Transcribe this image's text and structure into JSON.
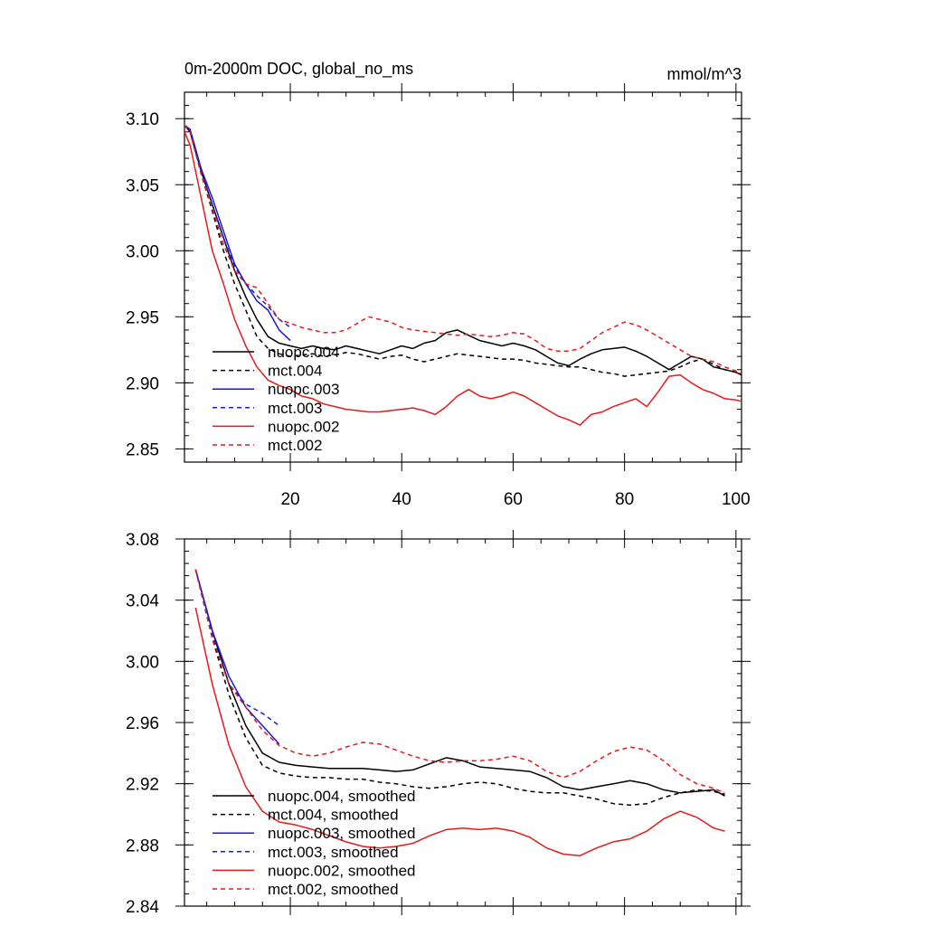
{
  "chart_data": [
    {
      "type": "line",
      "title": "0m-2000m DOC, global_no_ms",
      "units": "mmol/m^3",
      "xlim": [
        1,
        101
      ],
      "ylim": [
        2.84,
        3.12
      ],
      "xticks": [
        20,
        40,
        60,
        80,
        100
      ],
      "xtick_labels": [
        "20",
        "40",
        "60",
        "80",
        "100"
      ],
      "yticks": [
        2.85,
        2.9,
        2.95,
        3.0,
        3.05,
        3.1
      ],
      "ytick_labels": [
        "2.85",
        "2.90",
        "2.95",
        "3.00",
        "3.05",
        "3.10"
      ],
      "legend_position": "bottom-left",
      "series": [
        {
          "name": "nuopc.004",
          "color": "#000000",
          "dash": false,
          "x": [
            1,
            2,
            4,
            6,
            8,
            10,
            12,
            14,
            16,
            18,
            20,
            22,
            24,
            26,
            28,
            30,
            32,
            34,
            36,
            38,
            40,
            42,
            44,
            46,
            48,
            50,
            52,
            54,
            56,
            58,
            60,
            62,
            64,
            66,
            68,
            70,
            72,
            74,
            76,
            78,
            80,
            82,
            84,
            86,
            88,
            90,
            92,
            94,
            96,
            98,
            100,
            101
          ],
          "y": [
            3.095,
            3.09,
            3.06,
            3.035,
            3.01,
            2.985,
            2.965,
            2.948,
            2.935,
            2.93,
            2.928,
            2.926,
            2.928,
            2.926,
            2.925,
            2.928,
            2.926,
            2.924,
            2.922,
            2.925,
            2.928,
            2.926,
            2.93,
            2.932,
            2.938,
            2.94,
            2.936,
            2.932,
            2.93,
            2.928,
            2.93,
            2.928,
            2.925,
            2.92,
            2.915,
            2.913,
            2.918,
            2.922,
            2.925,
            2.926,
            2.927,
            2.924,
            2.92,
            2.915,
            2.91,
            2.915,
            2.92,
            2.918,
            2.912,
            2.91,
            2.908,
            2.906
          ]
        },
        {
          "name": "mct.004",
          "color": "#000000",
          "dash": true,
          "x": [
            1,
            2,
            4,
            6,
            8,
            10,
            12,
            14,
            16,
            18,
            20,
            22,
            24,
            26,
            28,
            30,
            32,
            34,
            36,
            38,
            40,
            42,
            44,
            46,
            48,
            50,
            52,
            54,
            56,
            58,
            60,
            62,
            64,
            66,
            68,
            70,
            72,
            74,
            76,
            78,
            80,
            82,
            84,
            86,
            88,
            90,
            92,
            94,
            96,
            98,
            100,
            101
          ],
          "y": [
            3.095,
            3.09,
            3.058,
            3.03,
            3.0,
            2.975,
            2.955,
            2.935,
            2.926,
            2.922,
            2.92,
            2.921,
            2.922,
            2.92,
            2.921,
            2.923,
            2.922,
            2.92,
            2.918,
            2.92,
            2.921,
            2.918,
            2.916,
            2.918,
            2.92,
            2.922,
            2.921,
            2.92,
            2.919,
            2.918,
            2.918,
            2.917,
            2.915,
            2.914,
            2.913,
            2.912,
            2.912,
            2.91,
            2.908,
            2.907,
            2.905,
            2.906,
            2.907,
            2.908,
            2.909,
            2.912,
            2.916,
            2.918,
            2.914,
            2.91,
            2.908,
            2.906
          ]
        },
        {
          "name": "nuopc.003",
          "color": "#1a1ad6",
          "dash": false,
          "x": [
            1,
            2,
            4,
            6,
            8,
            10,
            12,
            14,
            16,
            18,
            20
          ],
          "y": [
            3.095,
            3.092,
            3.062,
            3.04,
            3.015,
            2.99,
            2.975,
            2.962,
            2.955,
            2.94,
            2.932
          ]
        },
        {
          "name": "mct.003",
          "color": "#1a1ad6",
          "dash": true,
          "x": [
            1,
            2,
            4,
            6,
            8,
            10,
            12,
            14,
            16,
            18,
            20
          ],
          "y": [
            3.095,
            3.09,
            3.06,
            3.035,
            3.01,
            2.988,
            2.975,
            2.966,
            2.958,
            2.948,
            2.942
          ]
        },
        {
          "name": "nuopc.002",
          "color": "#e61a1a",
          "dash": false,
          "x": [
            1,
            2,
            4,
            6,
            8,
            10,
            12,
            14,
            16,
            18,
            20,
            22,
            24,
            26,
            28,
            30,
            32,
            34,
            36,
            38,
            40,
            42,
            44,
            46,
            48,
            50,
            52,
            54,
            56,
            58,
            60,
            62,
            64,
            66,
            68,
            70,
            72,
            74,
            76,
            78,
            80,
            82,
            84,
            86,
            88,
            90,
            92,
            94,
            96,
            98,
            100,
            101
          ],
          "y": [
            3.09,
            3.08,
            3.04,
            3.0,
            2.975,
            2.948,
            2.928,
            2.912,
            2.902,
            2.898,
            2.895,
            2.89,
            2.888,
            2.884,
            2.882,
            2.88,
            2.879,
            2.878,
            2.878,
            2.879,
            2.88,
            2.881,
            2.879,
            2.876,
            2.882,
            2.89,
            2.895,
            2.89,
            2.888,
            2.89,
            2.893,
            2.89,
            2.885,
            2.88,
            2.875,
            2.872,
            2.868,
            2.876,
            2.878,
            2.882,
            2.885,
            2.888,
            2.882,
            2.893,
            2.905,
            2.906,
            2.9,
            2.895,
            2.892,
            2.888,
            2.887,
            2.886
          ]
        },
        {
          "name": "mct.002",
          "color": "#e61a1a",
          "dash": true,
          "x": [
            1,
            2,
            4,
            6,
            8,
            10,
            12,
            14,
            16,
            18,
            20,
            22,
            24,
            26,
            28,
            30,
            32,
            34,
            36,
            38,
            40,
            42,
            44,
            46,
            48,
            50,
            52,
            54,
            56,
            58,
            60,
            62,
            64,
            66,
            68,
            70,
            72,
            74,
            76,
            78,
            80,
            82,
            84,
            86,
            88,
            90,
            92,
            94,
            96,
            98,
            100,
            101
          ],
          "y": [
            3.095,
            3.09,
            3.058,
            3.032,
            3.005,
            2.985,
            2.975,
            2.972,
            2.96,
            2.948,
            2.945,
            2.942,
            2.94,
            2.938,
            2.938,
            2.94,
            2.945,
            2.95,
            2.948,
            2.946,
            2.942,
            2.94,
            2.939,
            2.938,
            2.937,
            2.936,
            2.937,
            2.936,
            2.935,
            2.936,
            2.938,
            2.937,
            2.932,
            2.926,
            2.924,
            2.924,
            2.926,
            2.932,
            2.938,
            2.942,
            2.946,
            2.944,
            2.94,
            2.935,
            2.93,
            2.925,
            2.92,
            2.918,
            2.916,
            2.912,
            2.909,
            2.907
          ]
        }
      ]
    },
    {
      "type": "line",
      "xlim": [
        1,
        101
      ],
      "ylim": [
        2.84,
        3.08
      ],
      "xticks": [
        20,
        40,
        60,
        80,
        100
      ],
      "yticks": [
        2.84,
        2.88,
        2.92,
        2.96,
        3.0,
        3.04,
        3.08
      ],
      "ytick_labels": [
        "2.84",
        "2.88",
        "2.92",
        "2.96",
        "3.00",
        "3.04",
        "3.08"
      ],
      "legend_position": "bottom-left",
      "series": [
        {
          "name": "nuopc.004, smoothed",
          "color": "#000000",
          "dash": false,
          "x": [
            3,
            6,
            9,
            12,
            15,
            18,
            21,
            24,
            27,
            30,
            33,
            36,
            39,
            42,
            45,
            48,
            51,
            54,
            57,
            60,
            63,
            66,
            69,
            72,
            75,
            78,
            81,
            84,
            87,
            90,
            93,
            96,
            98
          ],
          "y": [
            3.06,
            3.02,
            2.985,
            2.958,
            2.94,
            2.934,
            2.932,
            2.931,
            2.93,
            2.93,
            2.93,
            2.929,
            2.928,
            2.929,
            2.933,
            2.937,
            2.935,
            2.931,
            2.93,
            2.929,
            2.928,
            2.924,
            2.918,
            2.916,
            2.918,
            2.92,
            2.922,
            2.92,
            2.916,
            2.914,
            2.915,
            2.916,
            2.912
          ]
        },
        {
          "name": "mct.004, smoothed",
          "color": "#000000",
          "dash": true,
          "x": [
            3,
            6,
            9,
            12,
            15,
            18,
            21,
            24,
            27,
            30,
            33,
            36,
            39,
            42,
            45,
            48,
            51,
            54,
            57,
            60,
            63,
            66,
            69,
            72,
            75,
            78,
            81,
            84,
            87,
            90,
            93,
            96,
            98
          ],
          "y": [
            3.06,
            3.015,
            2.978,
            2.95,
            2.932,
            2.927,
            2.925,
            2.924,
            2.924,
            2.923,
            2.923,
            2.921,
            2.92,
            2.918,
            2.917,
            2.918,
            2.92,
            2.921,
            2.92,
            2.917,
            2.915,
            2.914,
            2.914,
            2.912,
            2.91,
            2.907,
            2.906,
            2.907,
            2.911,
            2.914,
            2.916,
            2.915,
            2.913
          ]
        },
        {
          "name": "nuopc.003, smoothed",
          "color": "#1a1ad6",
          "dash": false,
          "x": [
            3,
            6,
            9,
            12,
            15,
            18
          ],
          "y": [
            3.06,
            3.02,
            2.99,
            2.97,
            2.958,
            2.946
          ]
        },
        {
          "name": "mct.003, smoothed",
          "color": "#1a1ad6",
          "dash": true,
          "x": [
            3,
            6,
            9,
            12,
            15,
            18
          ],
          "y": [
            3.06,
            3.017,
            2.985,
            2.972,
            2.966,
            2.958
          ]
        },
        {
          "name": "nuopc.002, smoothed",
          "color": "#e61a1a",
          "dash": false,
          "x": [
            3,
            6,
            9,
            12,
            15,
            18,
            21,
            24,
            27,
            30,
            33,
            36,
            39,
            42,
            45,
            48,
            51,
            54,
            57,
            60,
            63,
            66,
            69,
            72,
            75,
            78,
            81,
            84,
            87,
            90,
            93,
            96,
            98
          ],
          "y": [
            3.035,
            2.985,
            2.945,
            2.918,
            2.902,
            2.895,
            2.893,
            2.89,
            2.886,
            2.882,
            2.879,
            2.878,
            2.879,
            2.881,
            2.886,
            2.89,
            2.891,
            2.89,
            2.891,
            2.889,
            2.885,
            2.878,
            2.874,
            2.873,
            2.878,
            2.882,
            2.884,
            2.889,
            2.897,
            2.902,
            2.898,
            2.891,
            2.889
          ]
        },
        {
          "name": "mct.002, smoothed",
          "color": "#e61a1a",
          "dash": true,
          "x": [
            3,
            6,
            9,
            12,
            15,
            18,
            21,
            24,
            27,
            30,
            33,
            36,
            39,
            42,
            45,
            48,
            51,
            54,
            57,
            60,
            63,
            66,
            69,
            72,
            75,
            78,
            81,
            84,
            87,
            90,
            93,
            96,
            98
          ],
          "y": [
            3.06,
            3.015,
            2.985,
            2.97,
            2.955,
            2.945,
            2.94,
            2.938,
            2.94,
            2.944,
            2.947,
            2.946,
            2.942,
            2.938,
            2.935,
            2.934,
            2.935,
            2.935,
            2.936,
            2.938,
            2.935,
            2.928,
            2.924,
            2.928,
            2.935,
            2.941,
            2.944,
            2.942,
            2.935,
            2.926,
            2.92,
            2.917,
            2.914
          ]
        }
      ]
    }
  ]
}
